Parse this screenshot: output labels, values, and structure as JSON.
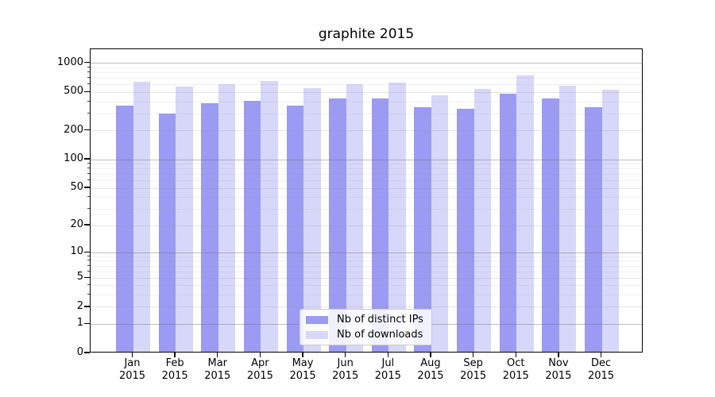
{
  "chart_data": {
    "type": "bar",
    "title": "graphite 2015",
    "categories": [
      "Jan 2015",
      "Feb 2015",
      "Mar 2015",
      "Apr 2015",
      "May 2015",
      "Jun 2015",
      "Jul 2015",
      "Aug 2015",
      "Sep 2015",
      "Oct 2015",
      "Nov 2015",
      "Dec 2015"
    ],
    "series": [
      {
        "name": "Nb of distinct IPs",
        "color": "#9b9bf3",
        "values": [
          350,
          290,
          370,
          392,
          348,
          415,
          415,
          338,
          327,
          468,
          413,
          336
        ]
      },
      {
        "name": "Nb of downloads",
        "color": "#d7d7f9",
        "values": [
          620,
          551,
          583,
          628,
          530,
          590,
          605,
          453,
          528,
          720,
          566,
          515
        ]
      }
    ],
    "y_axis": {
      "scale": "log(value+1)",
      "ticks": [
        0,
        1,
        2,
        5,
        10,
        20,
        50,
        100,
        200,
        500,
        1000
      ],
      "major_grid_ticks": [
        1,
        10,
        100,
        1000
      ],
      "minor_grid_ticks": [
        3,
        4,
        6,
        7,
        8,
        9,
        30,
        40,
        60,
        70,
        80,
        90,
        300,
        400,
        600,
        700,
        800,
        900
      ],
      "range": [
        0,
        1400
      ]
    },
    "legend": {
      "position": "lower center"
    },
    "grid": true,
    "background_color": "#ffffff"
  }
}
